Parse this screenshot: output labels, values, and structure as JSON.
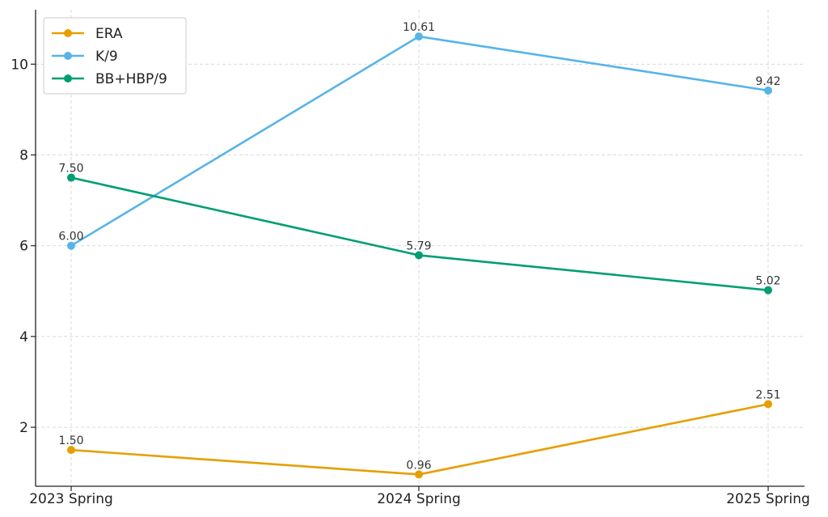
{
  "chart_data": {
    "type": "line",
    "title": "",
    "xlabel": "",
    "ylabel": "",
    "categories": [
      "2023 Spring",
      "2024 Spring",
      "2025 Spring"
    ],
    "ylim": [
      0.7,
      11.2
    ],
    "yticks": [
      2,
      4,
      6,
      8,
      10
    ],
    "grid": true,
    "legend_position": "top-left",
    "series": [
      {
        "name": "ERA",
        "color": "#E69F00",
        "values": [
          1.5,
          0.96,
          2.51
        ],
        "labels": [
          "1.50",
          "0.96",
          "2.51"
        ]
      },
      {
        "name": "K/9",
        "color": "#56B4E9",
        "values": [
          6.0,
          10.61,
          9.42
        ],
        "labels": [
          "6.00",
          "10.61",
          "9.42"
        ]
      },
      {
        "name": "BB+HBP/9",
        "color": "#009E73",
        "values": [
          7.5,
          5.79,
          5.02
        ],
        "labels": [
          "7.50",
          "5.79",
          "5.02"
        ]
      }
    ]
  }
}
